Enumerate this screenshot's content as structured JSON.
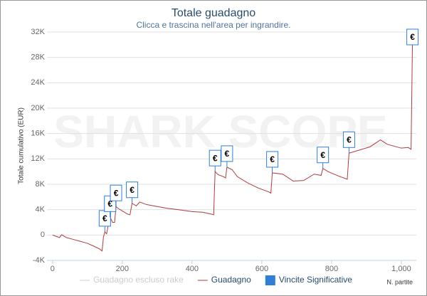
{
  "chart_data": {
    "type": "line",
    "title": "Totale guadagno",
    "subtitle": "Clicca e trascina nell'area per ingrandire.",
    "watermark": "SHARK SCOPE",
    "y_label": "Totale cumulativo (EUR)",
    "x_label": "N. partite",
    "xlim": [
      -16,
      1043
    ],
    "xticks": [
      0,
      200,
      400,
      600,
      800,
      {
        "value": 1000,
        "label": "1,000"
      }
    ],
    "ylim": [
      -4000,
      32000
    ],
    "yticks": [
      {
        "value": -4000,
        "label": "-4K"
      },
      0,
      {
        "value": 4000,
        "label": "4K"
      },
      {
        "value": 8000,
        "label": "8K"
      },
      {
        "value": 12000,
        "label": "12K"
      },
      {
        "value": 16000,
        "label": "16K"
      },
      {
        "value": 20000,
        "label": "20K"
      },
      {
        "value": 24000,
        "label": "24K"
      },
      {
        "value": 28000,
        "label": "28K"
      },
      {
        "value": 32000,
        "label": "32K"
      }
    ],
    "grid": true,
    "x": [
      0,
      10,
      20,
      26,
      40,
      60,
      80,
      100,
      120,
      135,
      142,
      146,
      150,
      155,
      160,
      165,
      172,
      178,
      182,
      188,
      200,
      215,
      222,
      228,
      240,
      250,
      270,
      300,
      330,
      360,
      400,
      430,
      455,
      462,
      466,
      475,
      490,
      496,
      500,
      515,
      530,
      560,
      590,
      620,
      626,
      630,
      660,
      690,
      720,
      750,
      770,
      775,
      790,
      820,
      845,
      850,
      880,
      910,
      940,
      960,
      1000,
      1020,
      1028,
      1032,
      1040
    ],
    "series": [
      {
        "name": "Guadagno escluso rake",
        "color": "#cccccc",
        "visible": false
      },
      {
        "name": "Guadagno",
        "color": "#b03a3a",
        "values": [
          0,
          -200,
          -400,
          50,
          -400,
          -700,
          -1000,
          -1300,
          -1800,
          -2200,
          -2500,
          -300,
          500,
          200,
          1700,
          2800,
          2000,
          2000,
          4500,
          4200,
          3800,
          3300,
          3200,
          5000,
          4600,
          5200,
          4800,
          4500,
          4200,
          4000,
          3700,
          3600,
          3300,
          3200,
          10000,
          9500,
          9200,
          9000,
          10700,
          10300,
          9200,
          8200,
          7400,
          6800,
          6600,
          9800,
          9600,
          8500,
          8600,
          9600,
          9400,
          10500,
          10000,
          9300,
          8800,
          12900,
          13400,
          13900,
          15000,
          14300,
          13700,
          13800,
          13500,
          30800,
          30600
        ]
      }
    ],
    "flags": {
      "name": "Vincite Significative",
      "color": "#2f7ed8",
      "label": "€",
      "x": [
        150,
        165,
        182,
        228,
        466,
        500,
        630,
        775,
        850,
        1032
      ]
    }
  }
}
